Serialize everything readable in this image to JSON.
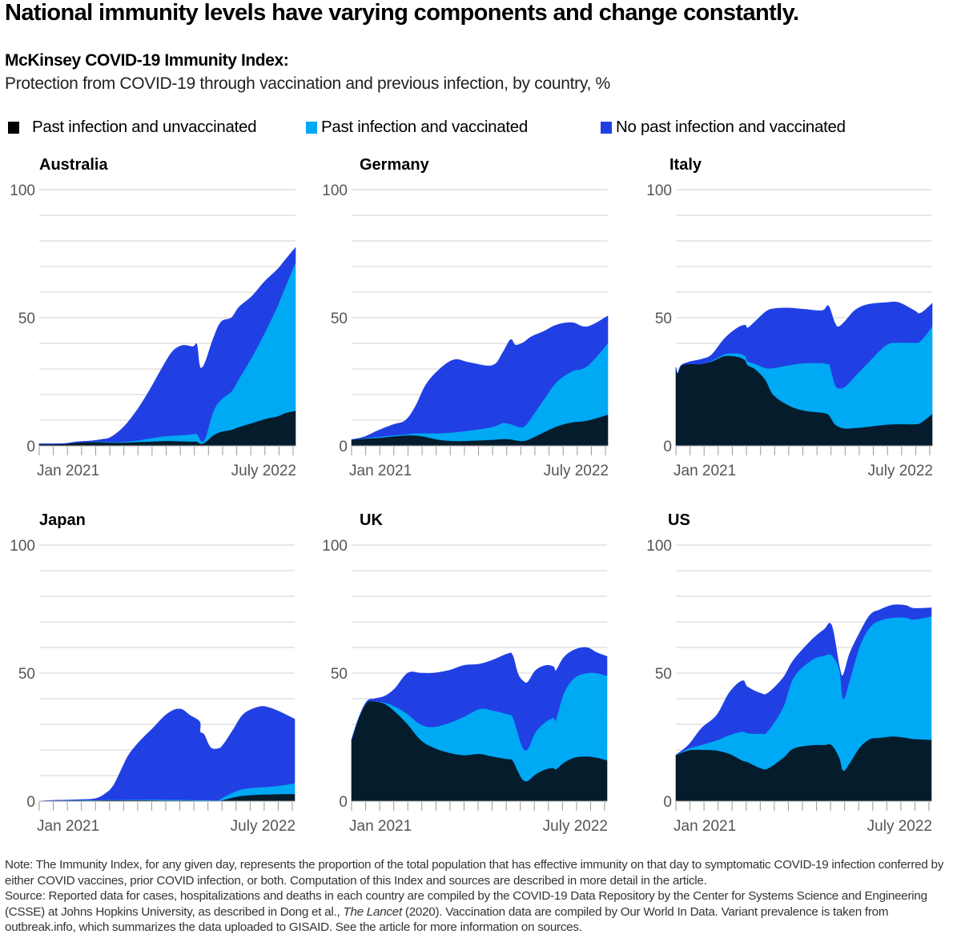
{
  "headline": "National immunity levels have varying components and change constantly.",
  "subtitle_bold": "McKinsey COVID-19 Immunity Index:",
  "subtitle": "Protection from COVID-19 through vaccination and previous infection, by country, %",
  "legend": [
    {
      "label": "Past infection and unvaccinated",
      "color": "#000000"
    },
    {
      "label": "Past infection and vaccinated",
      "color": "#00a9f4"
    },
    {
      "label": "No past infection and vaccinated",
      "color": "#2140e3"
    }
  ],
  "colors": {
    "past_infection_unvaccinated": "#051c2c",
    "past_infection_vaccinated": "#00a9f4",
    "no_past_infection_vaccinated": "#2140e3",
    "grid": "#d0d0d0",
    "axis": "#999999"
  },
  "footnote": {
    "note": "Note: The Immunity Index, for any given day, represents the proportion of the total population that has effective immunity on that day to symptomatic COVID-19 infection conferred by either COVID vaccines, prior COVID infection, or both. Computation of this Index and sources are described in more detail in the article.",
    "source_part1": "Source: Reported data for cases, hospitalizations and deaths in each country are compiled by the COVID-19 Data Repository by the Center for Systems Science and Engineering (CSSE) at Johns Hopkins University, as described in Dong et al., ",
    "source_italic": "The Lancet",
    "source_part2": " (2020). Vaccination data are compiled by Our World In Data. Variant prevalence is taken from outbreak.info, which summarizes the data uploaded to GISAID. See the article for more information on sources."
  },
  "chart_data": [
    {
      "type": "area",
      "stacked": true,
      "title": "Australia",
      "xlabel": "",
      "ylabel": "%",
      "ylim": [
        0,
        100
      ],
      "yticks": [
        0,
        50,
        100
      ],
      "grid": true,
      "x_tick_labels": [
        "Jan 2021",
        "July 2022"
      ],
      "x_range": [
        "Jan 2021",
        "July 2022"
      ],
      "x_ticks_count": 19,
      "x": [
        0,
        0.05,
        0.1,
        0.15,
        0.2,
        0.25,
        0.28,
        0.33,
        0.38,
        0.43,
        0.48,
        0.52,
        0.56,
        0.6,
        0.615,
        0.625,
        0.635,
        0.65,
        0.68,
        0.71,
        0.75,
        0.78,
        0.83,
        0.88,
        0.93,
        0.96,
        1.0
      ],
      "series": [
        {
          "name": "Past infection and unvaccinated",
          "values": [
            0.7,
            0.7,
            0.8,
            1.3,
            1.5,
            1.4,
            1.3,
            1.3,
            1.5,
            1.7,
            1.9,
            1.9,
            1.8,
            1.7,
            1.7,
            1.1,
            0.8,
            1.6,
            4.2,
            5.5,
            6.3,
            7.4,
            8.9,
            10.5,
            11.6,
            12.8,
            13.7
          ]
        },
        {
          "name": "Past infection and vaccinated",
          "values": [
            0,
            0,
            0,
            0,
            0.1,
            0.2,
            0.2,
            0.3,
            0.6,
            1.2,
            1.8,
            2.1,
            2.4,
            2.9,
            3.0,
            2.1,
            0.8,
            2.1,
            9.5,
            12.6,
            15.0,
            18.9,
            25.8,
            33.7,
            43.1,
            49.3,
            57.9
          ]
        },
        {
          "name": "No past infection and vaccinated",
          "values": [
            0.1,
            0.1,
            0.1,
            0.3,
            0.3,
            1.0,
            1.9,
            5.8,
            11.6,
            18.7,
            26.8,
            32.8,
            35.0,
            34.1,
            34.8,
            28.4,
            28.9,
            29.5,
            28.4,
            30.3,
            28.7,
            27.9,
            23.7,
            20.0,
            14.2,
            10.5,
            5.8
          ]
        }
      ]
    },
    {
      "type": "area",
      "stacked": true,
      "title": "Germany",
      "xlabel": "",
      "ylabel": "%",
      "ylim": [
        0,
        100
      ],
      "yticks": [
        0,
        50,
        100
      ],
      "grid": true,
      "x_tick_labels": [
        "Jan 2021",
        "July 2022"
      ],
      "x_range": [
        "Jan 2021",
        "July 2022"
      ],
      "x_ticks_count": 19,
      "x": [
        0,
        0.05,
        0.1,
        0.16,
        0.21,
        0.25,
        0.29,
        0.34,
        0.4,
        0.46,
        0.55,
        0.59,
        0.62,
        0.64,
        0.67,
        0.7,
        0.75,
        0.8,
        0.86,
        0.92,
        1.0
      ],
      "series": [
        {
          "name": "Past infection and unvaccinated",
          "values": [
            2.4,
            2.8,
            3.1,
            3.7,
            4.1,
            4.1,
            3.5,
            2.4,
            1.9,
            2.0,
            2.4,
            2.7,
            2.6,
            2.2,
            1.9,
            2.9,
            5.3,
            7.6,
            9.2,
            9.9,
            12.2
          ]
        },
        {
          "name": "Past infection and vaccinated",
          "values": [
            0,
            0.2,
            0.4,
            0.4,
            0.4,
            0.8,
            1.4,
            2.5,
            3.4,
            4.0,
            5.0,
            6.2,
            5.9,
            5.6,
            5.5,
            7.9,
            12.8,
            17.3,
            19.9,
            21.3,
            27.9
          ]
        },
        {
          "name": "No past infection and vaccinated",
          "values": [
            0,
            0.5,
            2.3,
            4.1,
            5.4,
            10.6,
            18.9,
            24.7,
            28.3,
            26.5,
            24.0,
            27.5,
            32.9,
            31.5,
            32.9,
            31.7,
            26.6,
            22.3,
            19.0,
            15.3,
            10.6
          ]
        }
      ]
    },
    {
      "type": "area",
      "stacked": true,
      "title": "Italy",
      "xlabel": "",
      "ylabel": "%",
      "ylim": [
        0,
        100
      ],
      "yticks": [
        0,
        50,
        100
      ],
      "grid": true,
      "x_tick_labels": [
        "Jan 2021",
        "July 2022"
      ],
      "x_range": [
        "Jan 2021",
        "July 2022"
      ],
      "x_ticks_count": 19,
      "x": [
        0,
        0.007,
        0.02,
        0.05,
        0.1,
        0.14,
        0.19,
        0.24,
        0.27,
        0.28,
        0.31,
        0.35,
        0.38,
        0.44,
        0.5,
        0.57,
        0.59,
        0.6,
        0.62,
        0.635,
        0.66,
        0.7,
        0.75,
        0.82,
        0.87,
        0.93,
        0.955,
        1.0
      ],
      "series": [
        {
          "name": "Past infection and unvaccinated",
          "values": [
            30.6,
            28.3,
            31.3,
            32.0,
            32.0,
            33.0,
            35.1,
            34.8,
            33.5,
            31.5,
            29.9,
            25.7,
            20.0,
            15.8,
            13.8,
            13.0,
            12.5,
            11.7,
            8.5,
            7.5,
            6.8,
            7.0,
            7.5,
            8.3,
            8.5,
            8.5,
            9.0,
            12.4
          ]
        },
        {
          "name": "Past infection and vaccinated",
          "values": [
            0,
            0,
            0,
            0,
            0,
            0.3,
            0.7,
            1.3,
            1.6,
            1.5,
            2.1,
            4.7,
            10.4,
            15.7,
            18.5,
            19.3,
            19.4,
            19.8,
            15.7,
            15.1,
            16.3,
            20.3,
            25.0,
            31.0,
            31.8,
            31.8,
            32.0,
            34.2
          ]
        },
        {
          "name": "No past infection and vaccinated",
          "values": [
            0,
            0,
            0,
            0.7,
            1.8,
            2.3,
            6.1,
            9.9,
            12.0,
            13.0,
            16.6,
            21.9,
            23.1,
            22.3,
            21.0,
            20.5,
            22.7,
            22.3,
            23.8,
            23.9,
            25.5,
            25.7,
            22.7,
            16.6,
            15.6,
            12.5,
            10.8,
            9.0
          ]
        }
      ]
    },
    {
      "type": "area",
      "stacked": true,
      "title": "Japan",
      "xlabel": "",
      "ylabel": "%",
      "ylim": [
        0,
        100
      ],
      "yticks": [
        0,
        50,
        100
      ],
      "grid": true,
      "x_tick_labels": [
        "Jan 2021",
        "July 2022"
      ],
      "x_range": [
        "Jan 2021",
        "July 2022"
      ],
      "x_ticks_count": 19,
      "x": [
        0,
        0.05,
        0.1,
        0.16,
        0.22,
        0.26,
        0.29,
        0.32,
        0.35,
        0.39,
        0.44,
        0.5,
        0.55,
        0.59,
        0.628,
        0.63,
        0.645,
        0.67,
        0.7,
        0.72,
        0.76,
        0.8,
        0.86,
        0.9,
        0.95,
        1.0
      ],
      "series": [
        {
          "name": "Past infection and unvaccinated",
          "values": [
            0,
            0.2,
            0.3,
            0.3,
            0.3,
            0.4,
            0.4,
            0.4,
            0.4,
            0.4,
            0.4,
            0.3,
            0.3,
            0.3,
            0.2,
            0.2,
            0.2,
            0.1,
            0.1,
            0.5,
            1.5,
            2.2,
            2.6,
            2.7,
            2.8,
            2.8
          ]
        },
        {
          "name": "Past infection and vaccinated",
          "values": [
            0,
            0,
            0,
            0.1,
            0.1,
            0.1,
            0.1,
            0.1,
            0.2,
            0.2,
            0.3,
            0.3,
            0.3,
            0.2,
            0.3,
            0.3,
            0.3,
            0.3,
            0.3,
            1.0,
            2.0,
            2.6,
            2.8,
            3.0,
            3.4,
            4.2
          ]
        },
        {
          "name": "No past infection and vaccinated",
          "values": [
            0,
            0.1,
            0.1,
            0.2,
            0.6,
            2.5,
            5.5,
            11.5,
            17.4,
            22.4,
            27.3,
            33.4,
            35.4,
            33.0,
            30.5,
            26.5,
            25.5,
            20.6,
            20.1,
            20.5,
            24.5,
            29.2,
            31.4,
            30.8,
            28.3,
            25.0
          ]
        }
      ]
    },
    {
      "type": "area",
      "stacked": true,
      "title": "UK",
      "xlabel": "",
      "ylabel": "%",
      "ylim": [
        0,
        100
      ],
      "yticks": [
        0,
        50,
        100
      ],
      "grid": true,
      "x_tick_labels": [
        "Jan 2021",
        "July 2022"
      ],
      "x_range": [
        "Jan 2021",
        "July 2022"
      ],
      "x_ticks_count": 19,
      "x": [
        0,
        0.03,
        0.06,
        0.09,
        0.13,
        0.17,
        0.22,
        0.27,
        0.32,
        0.38,
        0.44,
        0.5,
        0.55,
        0.61,
        0.63,
        0.65,
        0.67,
        0.69,
        0.72,
        0.76,
        0.79,
        0.8,
        0.83,
        0.87,
        0.92,
        0.96,
        1.0
      ],
      "series": [
        {
          "name": "Past infection and unvaccinated",
          "values": [
            24,
            33,
            38.5,
            39,
            38,
            35,
            30,
            24,
            21,
            19,
            18,
            18.5,
            17.5,
            16.5,
            16,
            12,
            8.5,
            8,
            10.5,
            12.5,
            13,
            12.5,
            15,
            17,
            17.5,
            17,
            16
          ]
        },
        {
          "name": "Past infection and vaccinated",
          "values": [
            0,
            0,
            0,
            0,
            0.5,
            2,
            4,
            6,
            8,
            11.5,
            15,
            17.5,
            18,
            17.5,
            17,
            15,
            12.5,
            12.5,
            16.5,
            18.5,
            19.5,
            19.5,
            27,
            31,
            32.5,
            33,
            33
          ]
        },
        {
          "name": "No past infection and vaccinated",
          "values": [
            0,
            0,
            0.5,
            1,
            2.5,
            7,
            16,
            20,
            21,
            20.5,
            20,
            17.5,
            19.5,
            23.5,
            24,
            23,
            26,
            26,
            24,
            22,
            20,
            19,
            14,
            11,
            10,
            8,
            7.5
          ]
        }
      ]
    },
    {
      "type": "area",
      "stacked": true,
      "title": "US",
      "xlabel": "",
      "ylabel": "%",
      "ylim": [
        0,
        100
      ],
      "yticks": [
        0,
        50,
        100
      ],
      "grid": true,
      "x_tick_labels": [
        "Jan 2021",
        "July 2022"
      ],
      "x_range": [
        "Jan 2021",
        "July 2022"
      ],
      "x_ticks_count": 19,
      "x": [
        0,
        0.05,
        0.1,
        0.16,
        0.21,
        0.26,
        0.28,
        0.33,
        0.36,
        0.42,
        0.46,
        0.53,
        0.58,
        0.61,
        0.64,
        0.655,
        0.68,
        0.72,
        0.76,
        0.8,
        0.85,
        0.9,
        0.93,
        1.0
      ],
      "series": [
        {
          "name": "Past infection and unvaccinated",
          "values": [
            18,
            19.9,
            20.1,
            19.8,
            18.5,
            15.9,
            15.3,
            13,
            12.8,
            17,
            20.6,
            21.9,
            22,
            21.9,
            17,
            12,
            14.9,
            21.1,
            24.3,
            24.8,
            25.3,
            24.8,
            24.3,
            24
          ]
        },
        {
          "name": "Past infection and vaccinated",
          "values": [
            0,
            0.7,
            1.9,
            4,
            7.3,
            11.3,
            11.3,
            13.4,
            14.6,
            19.8,
            27.6,
            33.1,
            34.8,
            35.1,
            34.4,
            28,
            32.3,
            39.6,
            43.7,
            45.8,
            46.4,
            46.9,
            46.6,
            48.2
          ]
        },
        {
          "name": "No past infection and vaccinated",
          "values": [
            0,
            1.4,
            6.4,
            9.8,
            16.7,
            19.8,
            18,
            15.8,
            14.8,
            11.4,
            6.8,
            7.8,
            10.2,
            11.5,
            1,
            9.3,
            10.4,
            5.2,
            4.7,
            4.2,
            4.9,
            4.7,
            4.4,
            3.3
          ]
        }
      ]
    }
  ]
}
